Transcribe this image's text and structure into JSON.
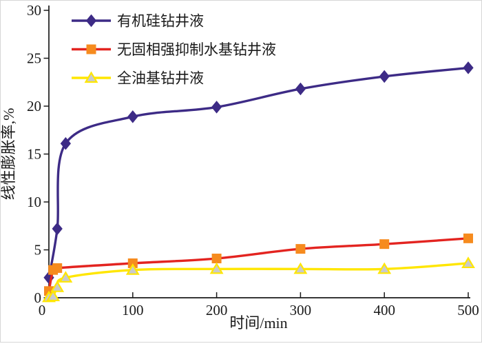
{
  "figure": {
    "background": "#ffffff",
    "border_color": "#d6d6d6",
    "axis_color": "#1a1a1a"
  },
  "chart_data": {
    "type": "line",
    "title": "",
    "xlabel": "时间/min",
    "ylabel": "线性膨胀率,%",
    "xlim": [
      0,
      500
    ],
    "ylim": [
      0,
      30
    ],
    "xticks": [
      0,
      100,
      200,
      300,
      400,
      500
    ],
    "yticks": [
      0,
      5,
      10,
      15,
      20,
      25,
      30
    ],
    "grid": false,
    "legend_position": "top-left",
    "series": [
      {
        "name": "有机硅钻井液",
        "marker": "diamond",
        "line_color": "#3D2B86",
        "marker_fill": "#3D2B86",
        "marker_edge": "#3D2B86",
        "x": [
          0,
          10,
          20,
          100,
          200,
          300,
          400,
          500
        ],
        "y": [
          2.1,
          7.2,
          16.1,
          18.9,
          19.9,
          21.8,
          23.1,
          24.0
        ]
      },
      {
        "name": "无固相强抑制水基钻井液",
        "marker": "square",
        "line_color": "#E32420",
        "marker_fill": "#F68B1E",
        "marker_edge": "#F68B1E",
        "x": [
          0,
          5,
          10,
          100,
          200,
          300,
          400,
          500
        ],
        "y": [
          0.7,
          2.9,
          3.1,
          3.6,
          4.1,
          5.1,
          5.6,
          6.2
        ]
      },
      {
        "name": "全油基钻井液",
        "marker": "triangle",
        "line_color": "#FFE600",
        "marker_fill": "#C9CACB",
        "marker_edge": "#FFE600",
        "x": [
          0,
          5,
          10,
          20,
          100,
          200,
          300,
          400,
          500
        ],
        "y": [
          0.05,
          0.15,
          1.1,
          2.1,
          2.9,
          3.0,
          3.0,
          3.0,
          3.6
        ]
      }
    ]
  }
}
